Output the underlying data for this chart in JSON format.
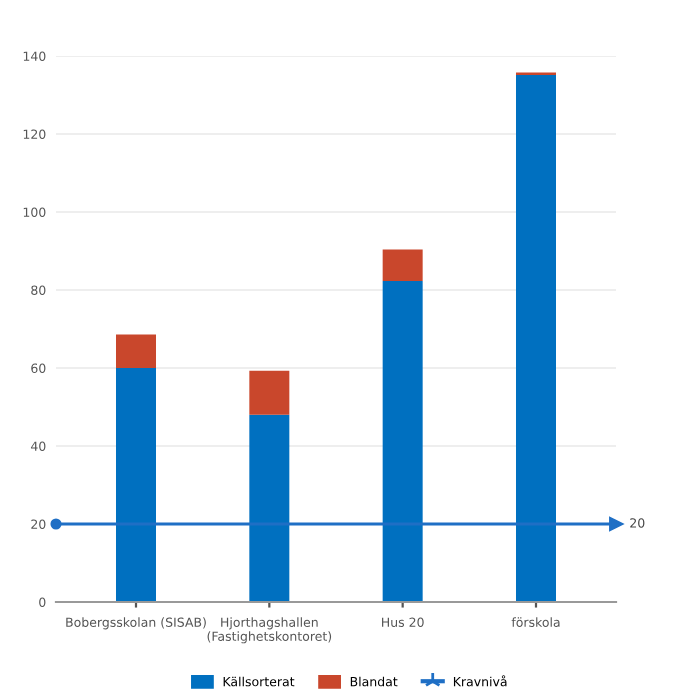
{
  "chart_data": {
    "type": "bar",
    "stacked": true,
    "categories": [
      "Bobergsskolan (SISAB)",
      "Hjorthagshallen (Fastighetskontoret)",
      "Hus 20",
      "förskola"
    ],
    "series": [
      {
        "name": "Källsorterat",
        "color": "#0070c0",
        "values": [
          60,
          48,
          82.3,
          135.1
        ]
      },
      {
        "name": "Blandat",
        "color": "#c9472c",
        "values": [
          8.6,
          11.3,
          8.1,
          0.7
        ]
      }
    ],
    "ref_lines": [
      {
        "axis": "y",
        "value": 20,
        "label": "Kravnivå",
        "color": "#1f6fc5"
      }
    ],
    "ylim": [
      0,
      140
    ],
    "yticks": [
      0,
      20,
      40,
      60,
      80,
      100,
      120,
      140
    ],
    "annotations": [
      "20"
    ],
    "grid": "y",
    "legend": "bottom"
  }
}
